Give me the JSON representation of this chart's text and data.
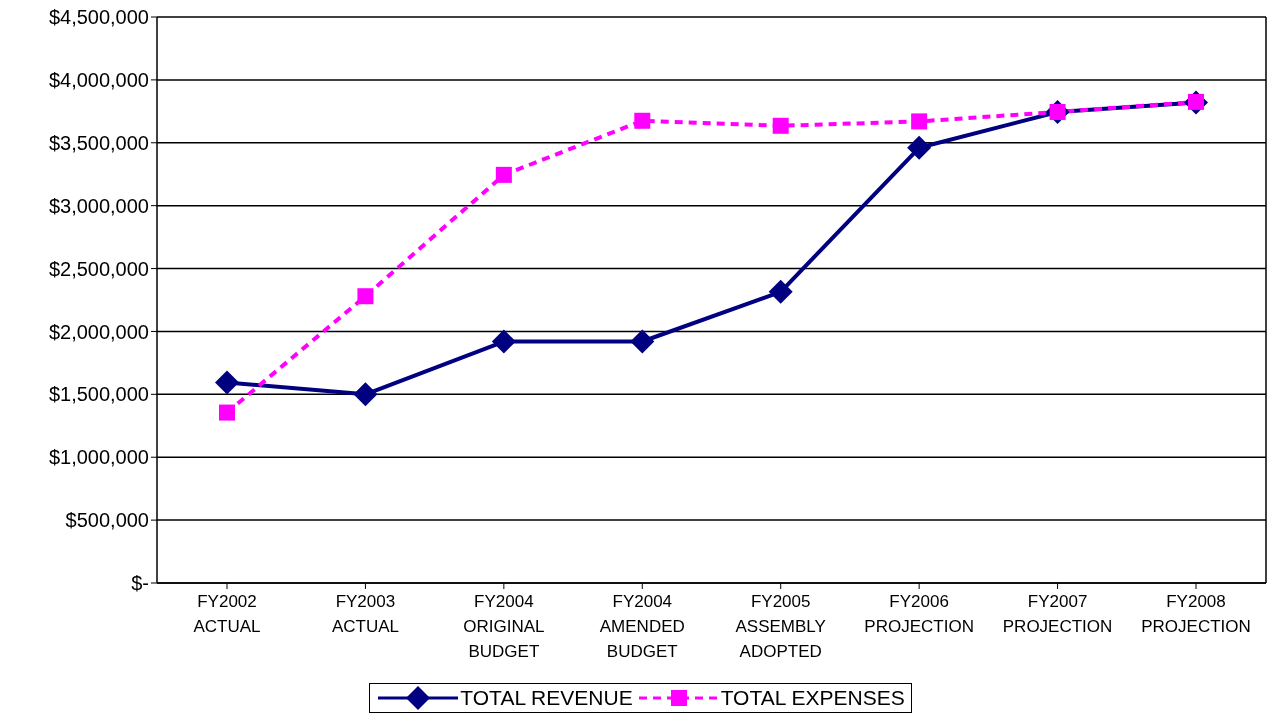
{
  "chart_data": {
    "type": "line",
    "categories": [
      "FY2002\nACTUAL",
      "FY2003\nACTUAL",
      "FY2004\nORIGINAL\nBUDGET",
      "FY2004\nAMENDED\nBUDGET",
      "FY2005\nASSEMBLY\nADOPTED",
      "FY2006\nPROJECTION",
      "FY2007\nPROJECTION",
      "FY2008\nPROJECTION"
    ],
    "series": [
      {
        "name": "TOTAL REVENUE",
        "color": "#000080",
        "marker": "diamond",
        "line_style": "solid",
        "values": [
          1595000,
          1500000,
          1920000,
          1920000,
          2315000,
          3460000,
          3745000,
          3820000
        ]
      },
      {
        "name": "TOTAL EXPENSES",
        "color": "#ff00ff",
        "marker": "square",
        "line_style": "dashed",
        "values": [
          1355000,
          2280000,
          3245000,
          3675000,
          3635000,
          3670000,
          3745000,
          3825000
        ]
      }
    ],
    "ylim": [
      0,
      4500000
    ],
    "yticks": [
      {
        "value": 0,
        "label": "$-"
      },
      {
        "value": 500000,
        "label": "$500,000"
      },
      {
        "value": 1000000,
        "label": "$1,000,000"
      },
      {
        "value": 1500000,
        "label": "$1,500,000"
      },
      {
        "value": 2000000,
        "label": "$2,000,000"
      },
      {
        "value": 2500000,
        "label": "$2,500,000"
      },
      {
        "value": 3000000,
        "label": "$3,000,000"
      },
      {
        "value": 3500000,
        "label": "$3,500,000"
      },
      {
        "value": 4000000,
        "label": "$4,000,000"
      },
      {
        "value": 4500000,
        "label": "$4,500,000"
      }
    ],
    "grid": "y",
    "legend": "bottom"
  }
}
